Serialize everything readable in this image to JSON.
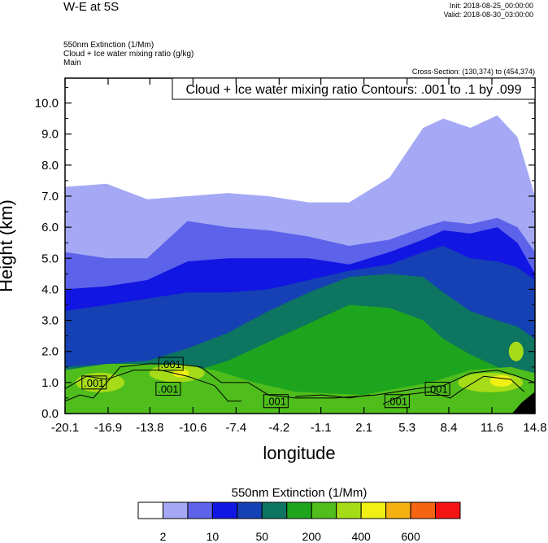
{
  "header": {
    "title": "W-E at 5S",
    "init": "Init: 2018-08-25_00:00:00",
    "valid": "Valid: 2018-08-30_03:00:00",
    "subtitle_lines": [
      "550nm Extinction   (1/Mm)",
      "Cloud + Ice water mixing ratio   (g/kg)",
      "Main"
    ],
    "cross_section": "Cross-Section: (130,374) to (454,374)"
  },
  "chart_data": {
    "type": "heatmap",
    "title": "W-E at 5S",
    "xlabel": "longitude",
    "ylabel": "Height (km)",
    "xlim": [
      -20.1,
      14.8
    ],
    "ylim": [
      0.0,
      10.8
    ],
    "x_ticks": [
      "-20.1",
      "-16.9",
      "-13.8",
      "-10.6",
      "-7.4",
      "-4.2",
      "-1.1",
      "2.1",
      "5.3",
      "8.4",
      "11.6",
      "14.8"
    ],
    "y_ticks": [
      "0.0",
      "1.0",
      "2.0",
      "3.0",
      "4.0",
      "5.0",
      "6.0",
      "7.0",
      "8.0",
      "9.0",
      "10.0"
    ],
    "contour_label": "Cloud + Ice water mixing ratio Contours: .001 to .1 by .099",
    "contour_annotations": [
      ".001",
      ".001",
      ".001",
      ".001",
      ".001",
      ".001"
    ],
    "colorbar": {
      "title": "550nm Extinction  (1/Mm)",
      "colors": [
        "#ffffff",
        "#a5a9f5",
        "#5d62ea",
        "#1216e2",
        "#1641b4",
        "#0d7560",
        "#1ea51e",
        "#4fbd1c",
        "#a6db17",
        "#f0f015",
        "#f5b012",
        "#f56410",
        "#f51414"
      ],
      "tick_labels": [
        "2",
        "10",
        "50",
        "200",
        "400",
        "600"
      ]
    }
  }
}
